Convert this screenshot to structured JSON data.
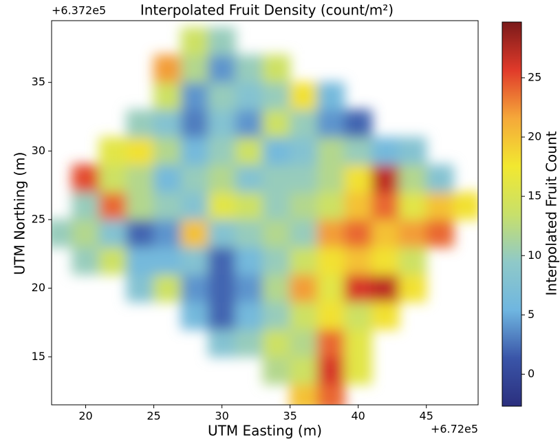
{
  "chart_data": {
    "type": "heatmap",
    "title": "Interpolated Fruit Density (count/m²)",
    "xlabel": "UTM Easting (m)",
    "ylabel": "UTM Northing (m)",
    "x_offset_label": "+6.72e5",
    "y_offset_label": "+6.372e5",
    "colorbar_label": "Interpolated Fruit Count",
    "xlim": [
      17.5,
      48.8
    ],
    "ylim": [
      11.5,
      39.5
    ],
    "xticks": [
      20,
      25,
      30,
      35,
      40,
      45
    ],
    "yticks": [
      15,
      20,
      25,
      30,
      35
    ],
    "clim": [
      -2.7,
      29.7
    ],
    "cticks": [
      0,
      5,
      10,
      15,
      20,
      25
    ],
    "colormap": [
      "#2b2f7e",
      "#3a55a8",
      "#6fb6e0",
      "#8fc9c8",
      "#c8e06a",
      "#f2e830",
      "#f5a83a",
      "#e03a2a",
      "#7a1a1a"
    ],
    "x": [
      18,
      20,
      22,
      24,
      26,
      28,
      30,
      32,
      34,
      36,
      38,
      40,
      42,
      44,
      46,
      48
    ],
    "y": [
      12,
      14,
      16,
      18,
      20,
      22,
      24,
      26,
      28,
      30,
      32,
      34,
      36,
      38
    ],
    "z": [
      [
        null,
        null,
        null,
        null,
        null,
        null,
        null,
        null,
        null,
        20,
        24,
        null,
        null,
        null,
        null,
        null
      ],
      [
        null,
        null,
        null,
        null,
        null,
        null,
        null,
        null,
        12,
        14,
        26,
        16,
        null,
        null,
        null,
        null
      ],
      [
        null,
        null,
        null,
        null,
        null,
        null,
        8,
        10,
        14,
        12,
        24,
        16,
        null,
        null,
        null,
        null
      ],
      [
        null,
        null,
        null,
        null,
        null,
        6,
        2,
        6,
        10,
        14,
        18,
        14,
        18,
        null,
        null,
        null
      ],
      [
        null,
        null,
        null,
        8,
        14,
        4,
        2,
        4,
        12,
        22,
        16,
        26,
        27,
        18,
        null,
        null
      ],
      [
        null,
        10,
        14,
        6,
        6,
        8,
        2,
        6,
        10,
        14,
        18,
        20,
        18,
        14,
        null,
        null
      ],
      [
        10,
        12,
        8,
        2,
        4,
        20,
        8,
        10,
        12,
        10,
        22,
        24,
        20,
        22,
        24,
        null
      ],
      [
        null,
        10,
        24,
        12,
        10,
        8,
        16,
        14,
        10,
        12,
        14,
        20,
        24,
        16,
        20,
        18
      ],
      [
        null,
        25,
        14,
        12,
        6,
        10,
        12,
        8,
        10,
        10,
        12,
        18,
        27,
        12,
        8,
        null
      ],
      [
        null,
        null,
        16,
        18,
        12,
        6,
        10,
        14,
        6,
        8,
        12,
        10,
        6,
        8,
        null,
        null
      ],
      [
        null,
        null,
        null,
        10,
        8,
        3,
        8,
        4,
        14,
        10,
        4,
        2,
        null,
        null,
        null,
        null
      ],
      [
        null,
        null,
        null,
        null,
        14,
        4,
        10,
        8,
        10,
        18,
        6,
        null,
        null,
        null,
        null,
        null
      ],
      [
        null,
        null,
        null,
        null,
        22,
        12,
        4,
        10,
        14,
        null,
        null,
        null,
        null,
        null,
        null,
        null
      ],
      [
        null,
        null,
        null,
        null,
        null,
        14,
        10,
        null,
        null,
        null,
        null,
        null,
        null,
        null,
        null,
        null
      ]
    ]
  }
}
